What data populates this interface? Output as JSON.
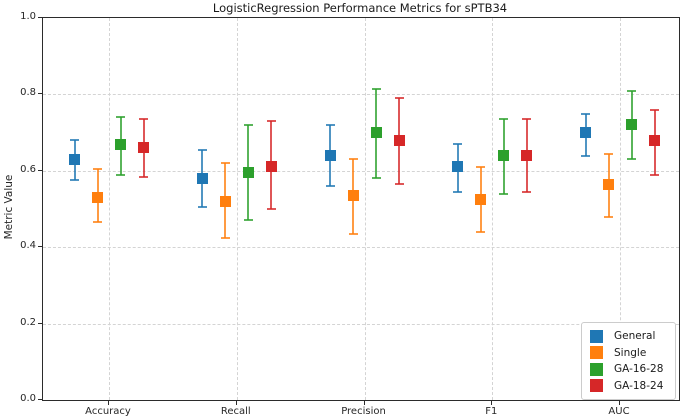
{
  "figure": {
    "background": "#ffffff"
  },
  "chart_data": {
    "type": "scatter",
    "subtype": "point-with-error-bars",
    "title": "LogisticRegression Performance Metrics for sPTB34",
    "xlabel": "",
    "ylabel": "Metric Value",
    "ylim": [
      0.0,
      1.0
    ],
    "yticks": [
      0.0,
      0.2,
      0.4,
      0.6,
      0.8,
      1.0
    ],
    "grid": "dashed, both axes",
    "legend_position": "lower right",
    "categories": [
      "Accuracy",
      "Recall",
      "Precision",
      "F1",
      "AUC"
    ],
    "series": [
      {
        "name": "General",
        "color": "#1f77b4",
        "values": [
          0.63,
          0.58,
          0.64,
          0.61,
          0.7
        ],
        "err_lower": [
          0.575,
          0.505,
          0.56,
          0.545,
          0.64
        ],
        "err_upper": [
          0.68,
          0.655,
          0.72,
          0.67,
          0.75
        ]
      },
      {
        "name": "Single",
        "color": "#ff7f0e",
        "values": [
          0.53,
          0.52,
          0.535,
          0.525,
          0.565
        ],
        "err_lower": [
          0.465,
          0.425,
          0.435,
          0.44,
          0.48
        ],
        "err_upper": [
          0.605,
          0.62,
          0.63,
          0.61,
          0.645
        ]
      },
      {
        "name": "GA-16-28",
        "color": "#2ca02c",
        "values": [
          0.67,
          0.595,
          0.7,
          0.64,
          0.72
        ],
        "err_lower": [
          0.59,
          0.47,
          0.58,
          0.54,
          0.63
        ],
        "err_upper": [
          0.74,
          0.72,
          0.815,
          0.735,
          0.81
        ]
      },
      {
        "name": "GA-18-24",
        "color": "#d62728",
        "values": [
          0.66,
          0.61,
          0.68,
          0.64,
          0.68
        ],
        "err_lower": [
          0.585,
          0.5,
          0.565,
          0.545,
          0.59
        ],
        "err_upper": [
          0.735,
          0.73,
          0.79,
          0.735,
          0.76
        ]
      }
    ]
  }
}
